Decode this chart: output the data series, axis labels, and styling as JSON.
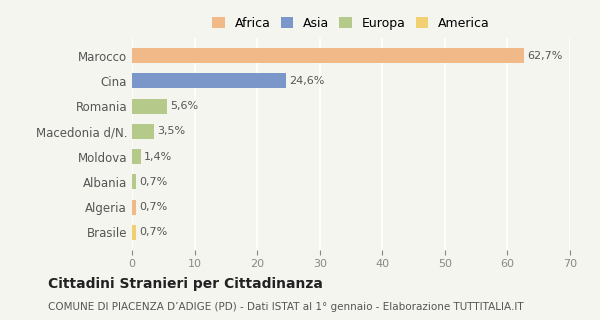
{
  "categories": [
    "Marocco",
    "Cina",
    "Romania",
    "Macedonia d/N.",
    "Moldova",
    "Albania",
    "Algeria",
    "Brasile"
  ],
  "values": [
    62.7,
    24.6,
    5.6,
    3.5,
    1.4,
    0.7,
    0.7,
    0.7
  ],
  "labels": [
    "62,7%",
    "24,6%",
    "5,6%",
    "3,5%",
    "1,4%",
    "0,7%",
    "0,7%",
    "0,7%"
  ],
  "colors": [
    "#f0b987",
    "#7b96c8",
    "#b5c98a",
    "#b5c98a",
    "#b5c98a",
    "#b5c98a",
    "#f0b987",
    "#f0d070"
  ],
  "legend_labels": [
    "Africa",
    "Asia",
    "Europa",
    "America"
  ],
  "legend_colors": [
    "#f0b987",
    "#7b96c8",
    "#b5c98a",
    "#f0d070"
  ],
  "xlim": [
    0,
    70
  ],
  "xticks": [
    0,
    10,
    20,
    30,
    40,
    50,
    60,
    70
  ],
  "title": "Cittadini Stranieri per Cittadinanza",
  "subtitle": "COMUNE DI PIACENZA D’ADIGE (PD) - Dati ISTAT al 1° gennaio - Elaborazione TUTTITALIA.IT",
  "bg_color": "#f5f5f0",
  "bar_height": 0.6
}
